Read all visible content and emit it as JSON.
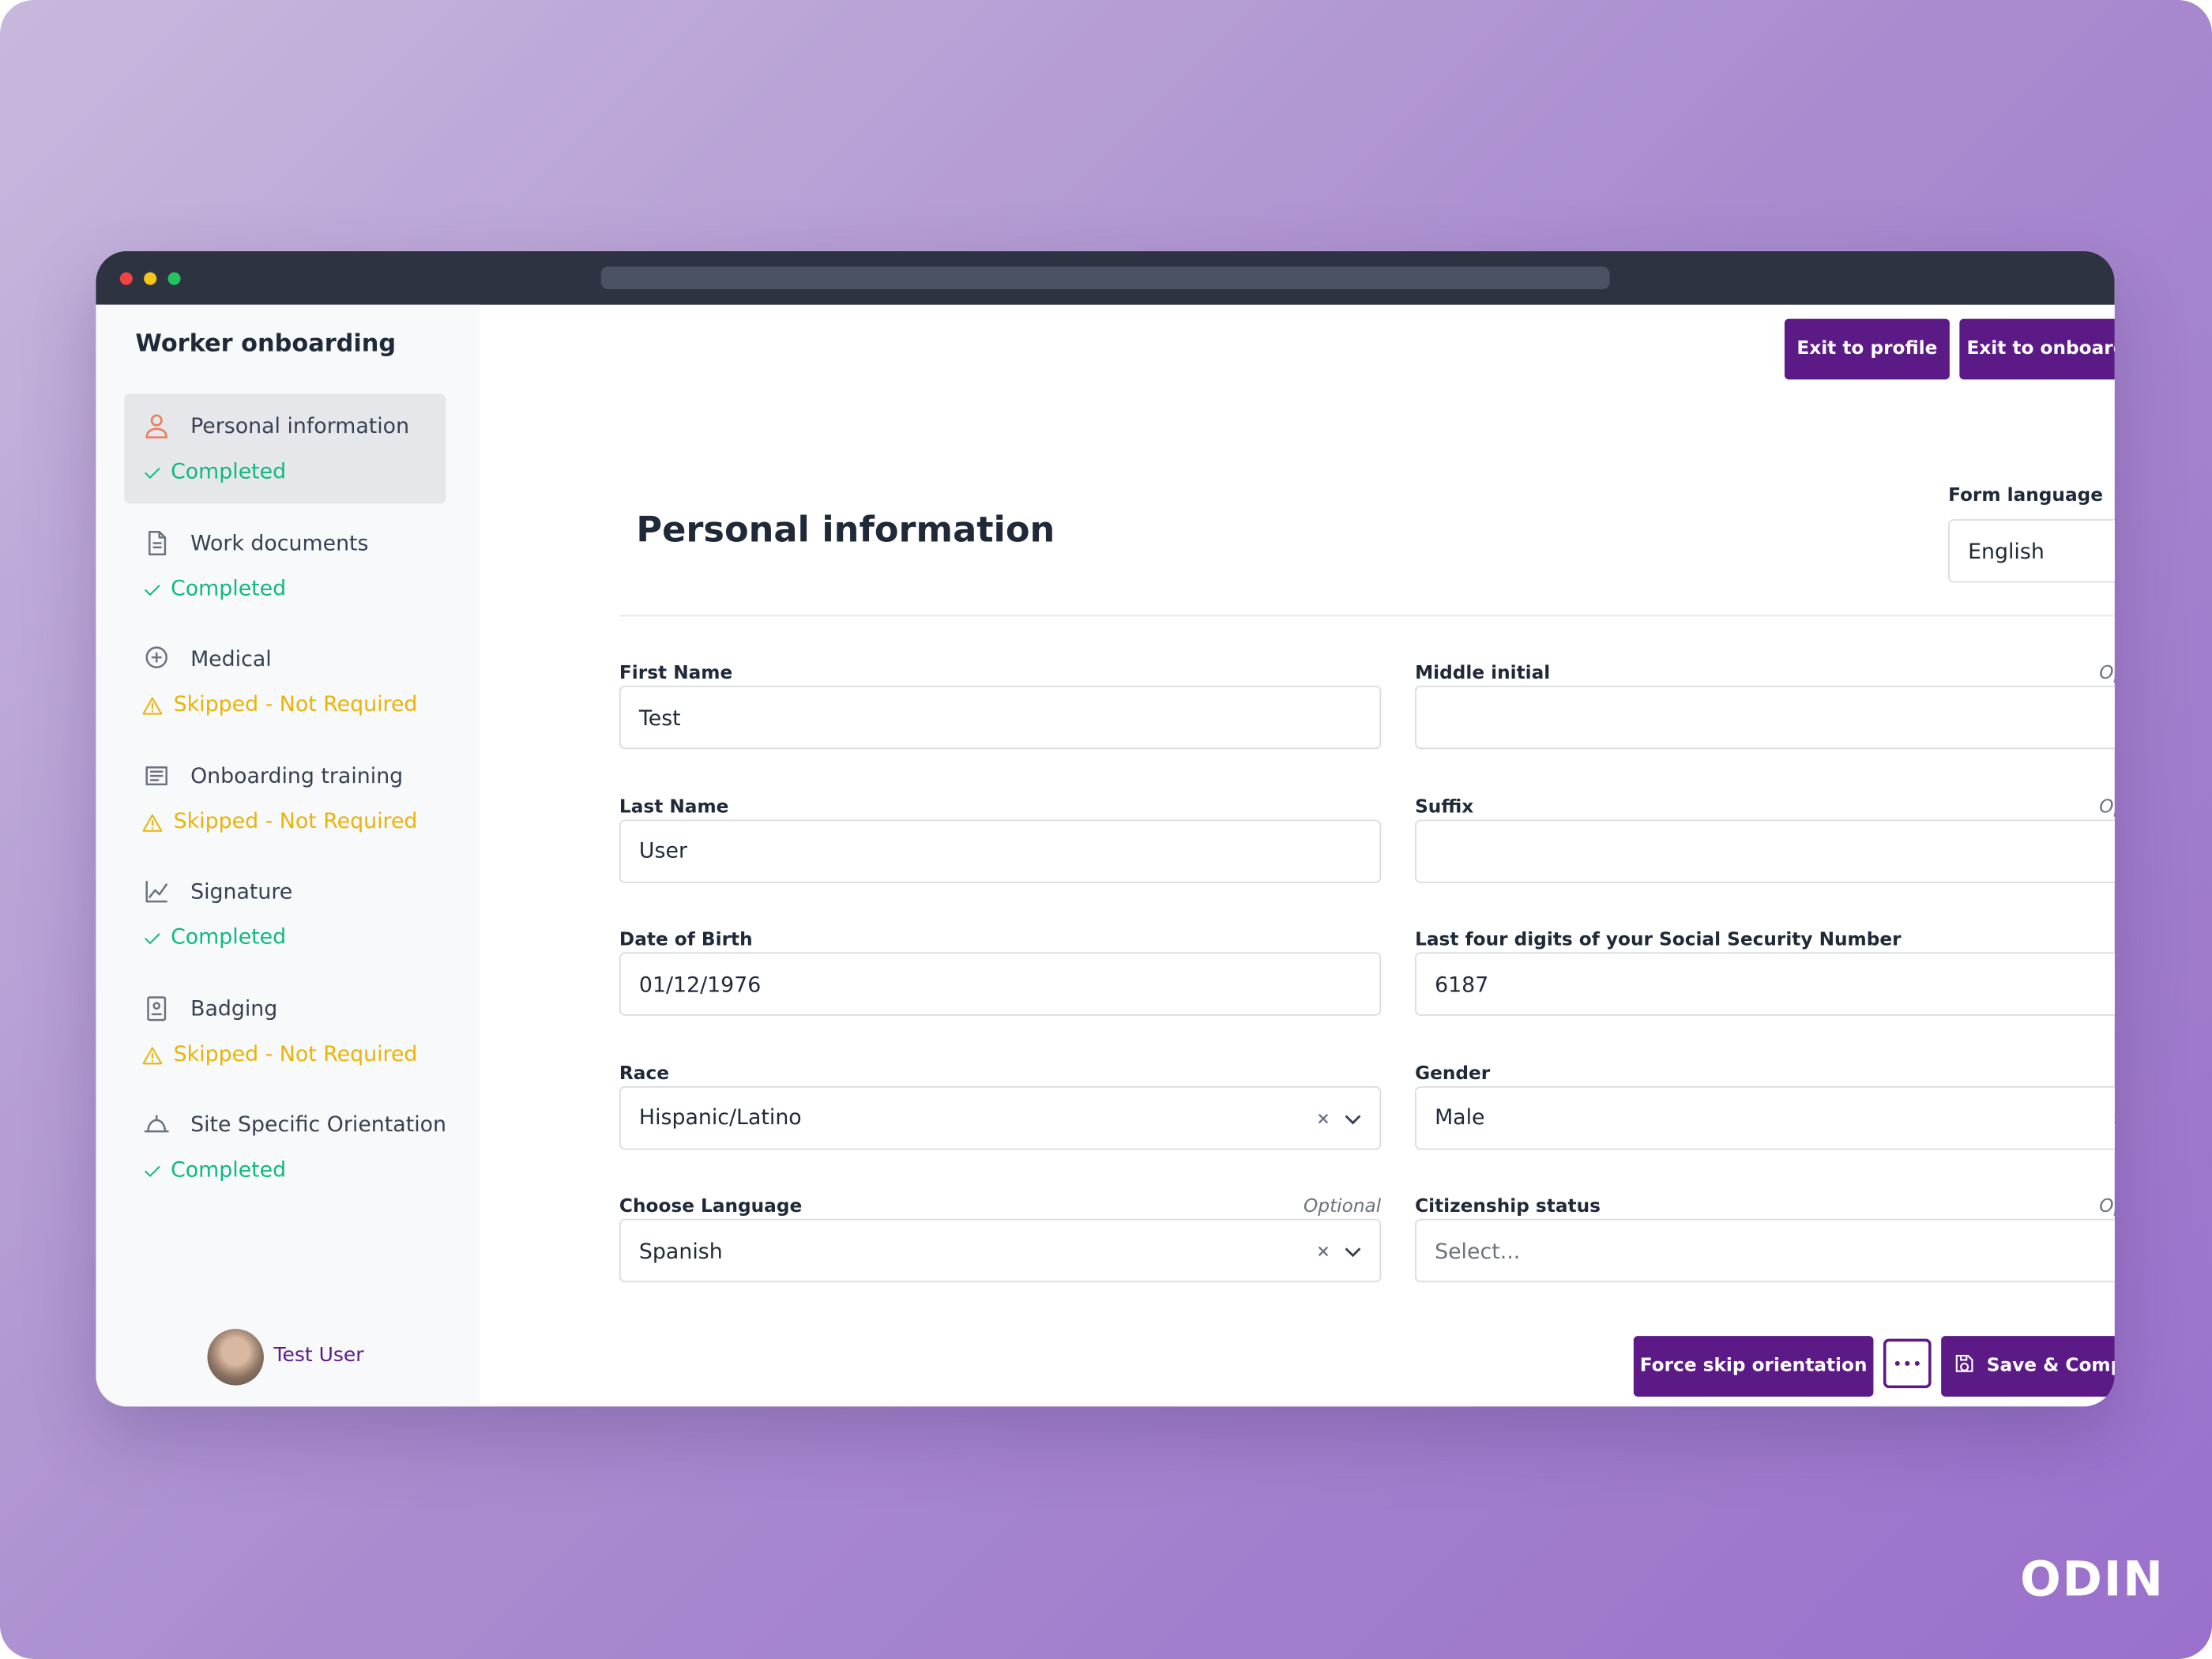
{
  "sidebar": {
    "title": "Worker onboarding",
    "steps": [
      {
        "label": "Personal information",
        "status": "Completed",
        "color": "#10b981"
      },
      {
        "label": "Work documents",
        "status": "Completed",
        "color": "#10b981"
      },
      {
        "label": "Medical",
        "status": "Skipped - Not Required",
        "color": "#eab308"
      },
      {
        "label": "Onboarding training",
        "status": "Skipped - Not Required",
        "color": "#eab308"
      },
      {
        "label": "Signature",
        "status": "Completed",
        "color": "#10b981"
      },
      {
        "label": "Badging",
        "status": "Skipped - Not Required",
        "color": "#eab308"
      },
      {
        "label": "Site Specific Orientation",
        "status": "Completed",
        "color": "#10b981"
      }
    ],
    "user": "Test User"
  },
  "header": {
    "buttons": [
      "Exit to profile",
      "Exit to onboardings"
    ]
  },
  "form": {
    "title": "Personal information",
    "language_label": "Form language",
    "language": "English",
    "fields": [
      {
        "label": "First Name",
        "value": "Test"
      },
      {
        "label": "Middle initial",
        "note": "Optional"
      },
      {
        "label": "Last Name",
        "value": "User"
      },
      {
        "label": "Suffix",
        "note": "Optional"
      },
      {
        "label": "Date of Birth",
        "value": "01/12/1976"
      },
      {
        "label": "Last four digits of your Social Security Number",
        "value": "6187"
      },
      {
        "label": "Race",
        "value": "Hispanic/Latino",
        "select": true,
        "clearable": true
      },
      {
        "label": "Gender",
        "value": "Male",
        "select": true,
        "clearable": true
      },
      {
        "label": "Choose Language",
        "note": "Optional",
        "value": "Spanish",
        "select": true,
        "clearable": true
      },
      {
        "label": "Citizenship status",
        "note": "Optional",
        "placeholder": "Select...",
        "select": true
      }
    ],
    "actions": [
      "Force skip orientation",
      "Save & Complete"
    ]
  },
  "brand": "ODIN"
}
